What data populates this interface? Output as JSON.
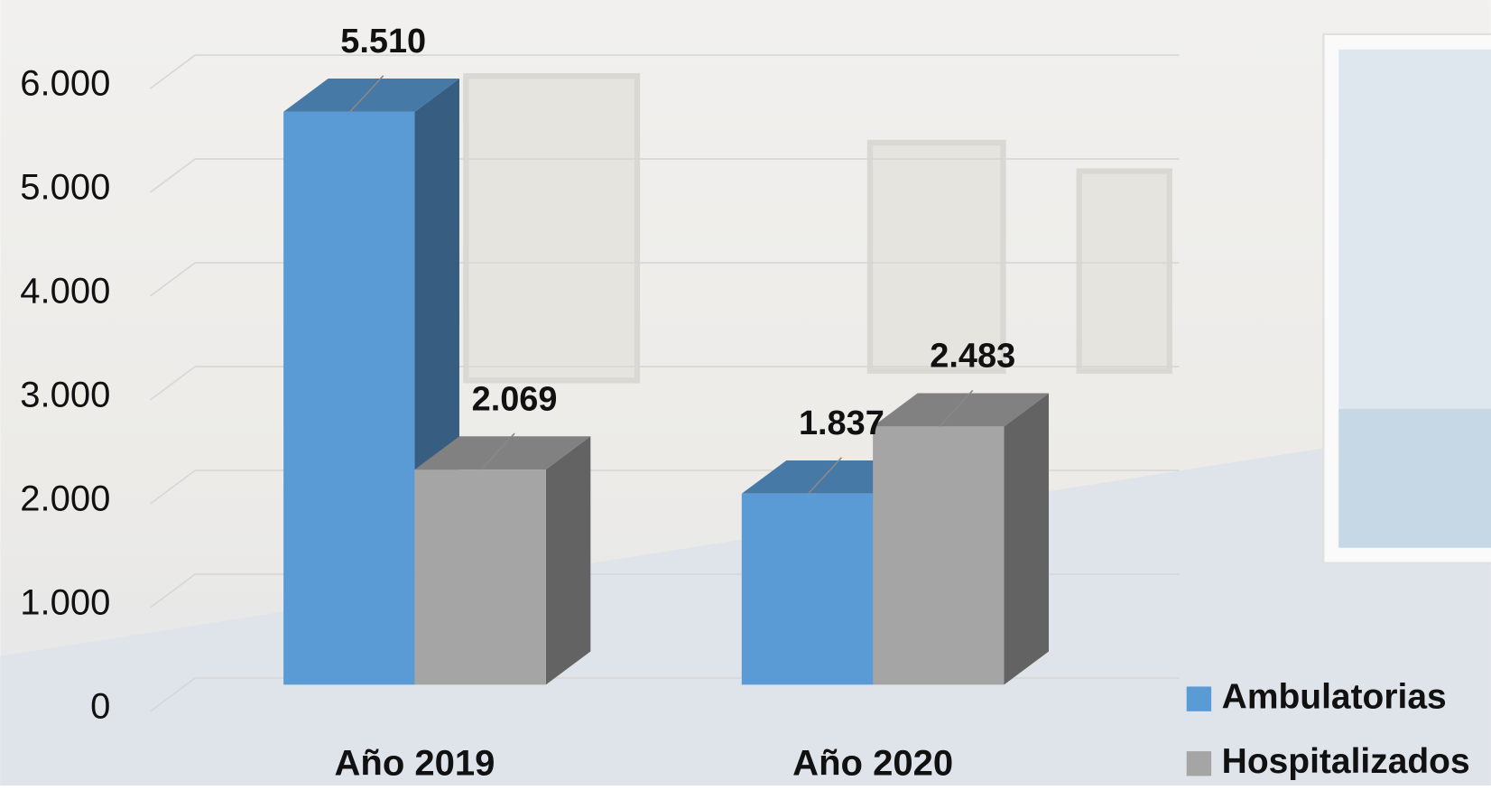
{
  "chart_data": {
    "type": "bar3d",
    "categories": [
      "Año 2019",
      "Año 2020"
    ],
    "series": [
      {
        "name": "Ambulatorias",
        "color": "#5b9bd5",
        "values": [
          5510,
          1837
        ],
        "value_labels": [
          "5.510",
          "1.837"
        ]
      },
      {
        "name": "Hospitalizados",
        "color": "#a5a5a5",
        "values": [
          2069,
          2483
        ],
        "value_labels": [
          "2.069",
          "2.483"
        ]
      }
    ],
    "ylim": [
      0,
      6000
    ],
    "yticks": [
      0,
      {
        "value": 1000,
        "label": "1.000"
      },
      {
        "value": 2000,
        "label": "2.000"
      },
      {
        "value": 3000,
        "label": "3.000"
      },
      {
        "value": 4000,
        "label": "4.000"
      },
      {
        "value": 5000,
        "label": "5.000"
      },
      {
        "value": 6000,
        "label": "6.000"
      }
    ],
    "grid": true
  }
}
